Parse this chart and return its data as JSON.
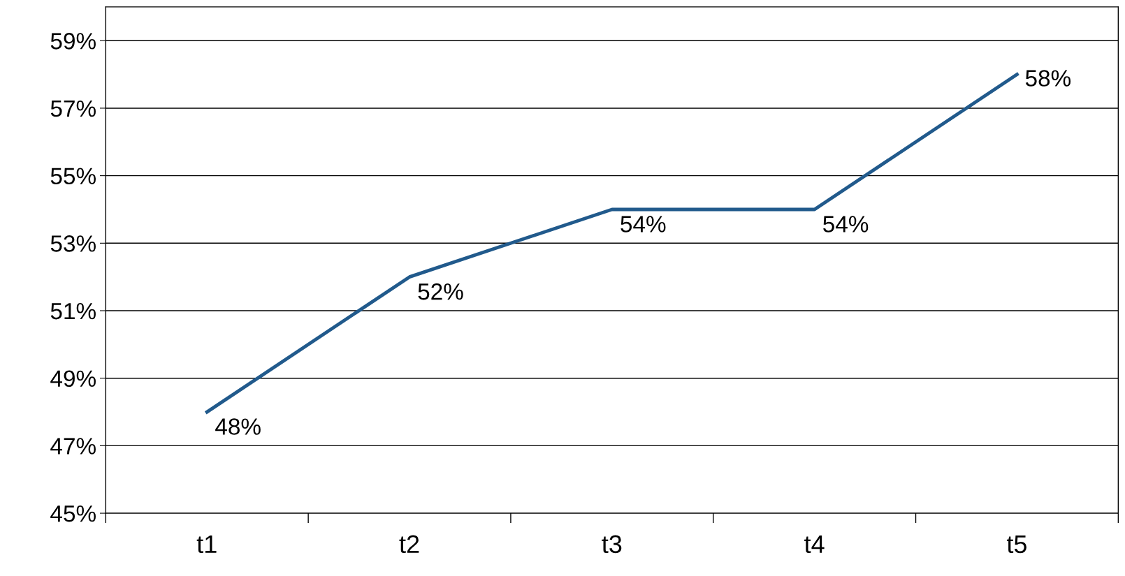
{
  "chart_data": {
    "type": "line",
    "categories": [
      "t1",
      "t2",
      "t3",
      "t4",
      "t5"
    ],
    "series": [
      {
        "color": "#215a8c",
        "values": [
          48,
          52,
          54,
          54,
          58
        ],
        "value_labels": [
          "48%",
          "52%",
          "54%",
          "54%",
          "58%"
        ]
      }
    ],
    "ylim": [
      45,
      60
    ],
    "yticks": [
      {
        "value": 45,
        "label": "45%"
      },
      {
        "value": 47,
        "label": "47%"
      },
      {
        "value": 49,
        "label": "49%"
      },
      {
        "value": 51,
        "label": "51%"
      },
      {
        "value": 53,
        "label": "53%"
      },
      {
        "value": 55,
        "label": "55%"
      },
      {
        "value": 57,
        "label": "57%"
      },
      {
        "value": 59,
        "label": "59%"
      }
    ],
    "grid": "y",
    "marker": "none",
    "line_style": "solid"
  }
}
